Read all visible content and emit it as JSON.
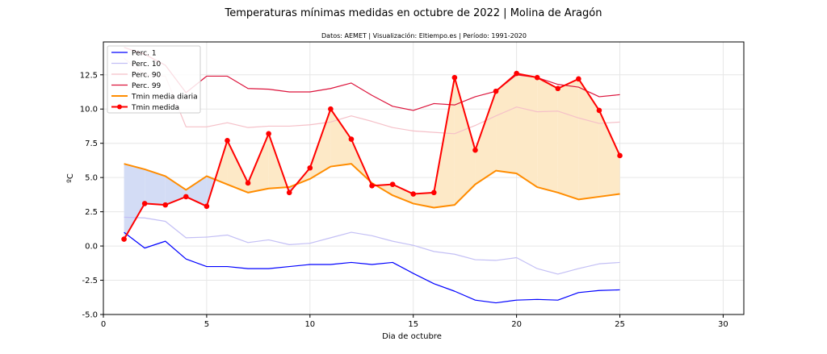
{
  "chart_data": {
    "type": "line",
    "title": "Temperaturas mínimas medidas en octubre de 2022 | Molina de Aragón",
    "subtitle": "Datos: AEMET | Visualización: Eltiempo.es | Período: 1991-2020",
    "xlabel": "Dia de octubre",
    "ylabel": "ºC",
    "xlim": [
      0,
      31
    ],
    "ylim": [
      -5,
      14.9
    ],
    "xticks": [
      0,
      5,
      10,
      15,
      20,
      25,
      30
    ],
    "yticks": [
      -5.0,
      -2.5,
      0.0,
      2.5,
      5.0,
      7.5,
      10.0,
      12.5
    ],
    "grid": true,
    "legend_position": "top-left",
    "x": [
      1,
      2,
      3,
      4,
      5,
      6,
      7,
      8,
      9,
      10,
      11,
      12,
      13,
      14,
      15,
      16,
      17,
      18,
      19,
      20,
      21,
      22,
      23,
      24,
      25
    ],
    "series": [
      {
        "name": "Perc. 1",
        "color": "#0000ff",
        "values": [
          1.0,
          -0.15,
          0.35,
          -0.95,
          -1.5,
          -1.5,
          -1.65,
          -1.65,
          -1.5,
          -1.35,
          -1.35,
          -1.2,
          -1.35,
          -1.2,
          -2.0,
          -2.75,
          -3.3,
          -3.95,
          -4.15,
          -3.95,
          -3.9,
          -3.95,
          -3.4,
          -3.25,
          -3.2
        ]
      },
      {
        "name": "Perc. 10",
        "color": "#c3bff5",
        "values": [
          2.1,
          2.05,
          1.8,
          0.6,
          0.65,
          0.8,
          0.25,
          0.45,
          0.1,
          0.2,
          0.6,
          1.0,
          0.75,
          0.35,
          0.05,
          -0.4,
          -0.6,
          -1.0,
          -1.05,
          -0.85,
          -1.65,
          -2.05,
          -1.65,
          -1.3,
          -1.2
        ]
      },
      {
        "name": "Perc. 90",
        "color": "#f5c0c8",
        "values": [
          13.7,
          12.5,
          12.4,
          8.7,
          8.7,
          9.0,
          8.65,
          8.75,
          8.75,
          8.85,
          9.05,
          9.5,
          9.1,
          8.65,
          8.4,
          8.3,
          8.2,
          8.8,
          9.5,
          10.15,
          9.8,
          9.85,
          9.35,
          8.95,
          9.05
        ]
      },
      {
        "name": "Perc. 99",
        "color": "#dc143c",
        "values": [
          14.5,
          14.0,
          13.2,
          11.2,
          12.4,
          12.4,
          11.5,
          11.45,
          11.25,
          11.25,
          11.5,
          11.9,
          11.0,
          10.2,
          9.9,
          10.4,
          10.3,
          10.9,
          11.3,
          12.5,
          12.3,
          11.8,
          11.6,
          10.9,
          11.05
        ]
      },
      {
        "name": "Tmin media diaria",
        "color": "#ff8c00",
        "values": [
          6.0,
          5.6,
          5.1,
          4.1,
          5.1,
          4.5,
          3.9,
          4.2,
          4.3,
          4.9,
          5.8,
          6.0,
          4.6,
          3.7,
          3.1,
          2.8,
          3.0,
          4.5,
          5.5,
          5.3,
          4.3,
          3.9,
          3.4,
          3.6,
          3.8
        ]
      },
      {
        "name": "Tmin medida",
        "color": "#ff0000",
        "markers": true,
        "values": [
          0.5,
          3.1,
          3.0,
          3.6,
          2.9,
          7.7,
          4.6,
          8.2,
          3.9,
          5.7,
          10.0,
          7.8,
          4.4,
          4.5,
          3.8,
          3.9,
          12.3,
          7.0,
          11.3,
          12.6,
          12.3,
          11.5,
          12.2,
          9.9,
          6.6
        ]
      }
    ],
    "fill_between": {
      "above_color": "#fde9c7",
      "below_color": "#d3dcf5"
    }
  }
}
